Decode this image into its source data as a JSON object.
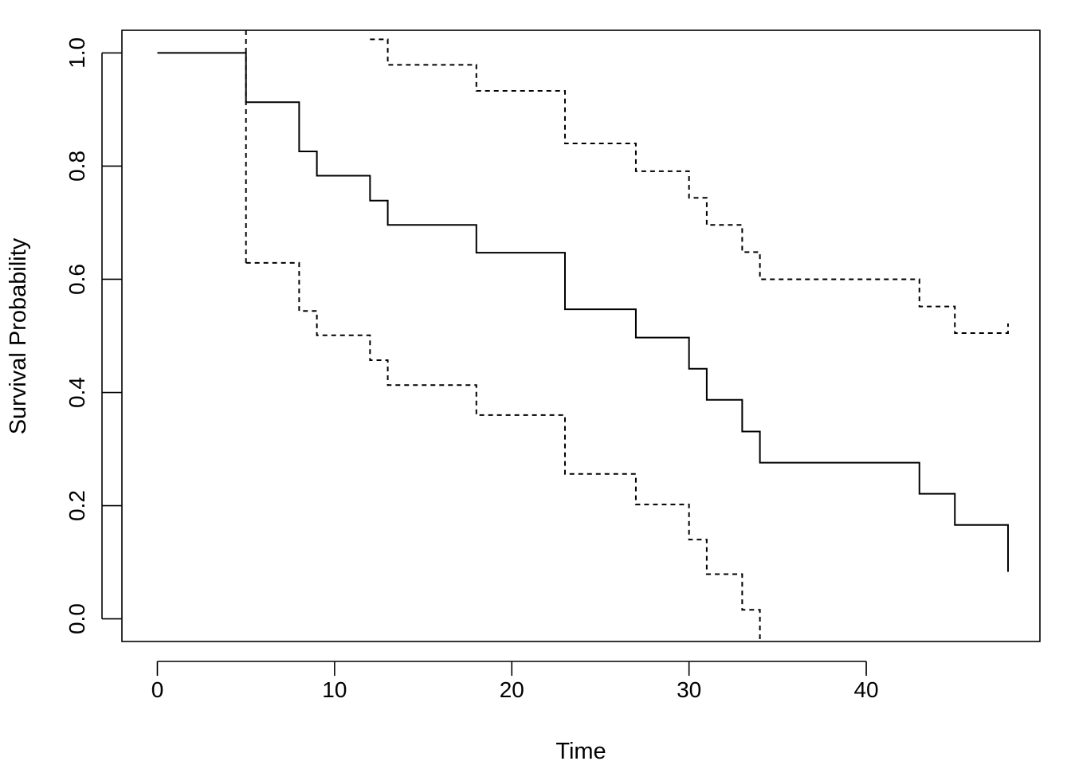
{
  "chart_data": {
    "type": "line",
    "title": "",
    "xlabel": "Time",
    "ylabel": "Survival Probability",
    "xlim": [
      -2,
      49.8
    ],
    "ylim": [
      -0.04,
      1.04
    ],
    "x_ticks": [
      0,
      10,
      20,
      30,
      40
    ],
    "x_tick_labels": [
      "0",
      "10",
      "20",
      "30",
      "40"
    ],
    "y_ticks": [
      0,
      0.2,
      0.4,
      0.6,
      0.8,
      1
    ],
    "y_tick_labels": [
      "0.0",
      "0.2",
      "0.4",
      "0.6",
      "0.8",
      "1.0"
    ],
    "grid": false,
    "legend": "none",
    "series": [
      {
        "style": "solid",
        "step": true,
        "x": [
          0,
          5,
          8,
          9,
          12,
          13,
          18,
          23,
          27,
          30,
          31,
          33,
          34,
          43,
          45,
          48
        ],
        "y": [
          1.0,
          0.913,
          0.826,
          0.783,
          0.739,
          0.696,
          0.647,
          0.547,
          0.497,
          0.442,
          0.387,
          0.331,
          0.276,
          0.221,
          0.166,
          0.083
        ]
      },
      {
        "style": "dashed",
        "step": true,
        "x": [
          5,
          8,
          9,
          12,
          13,
          18,
          23,
          27,
          30,
          31,
          33,
          34
        ],
        "y": [
          0.629,
          0.544,
          0.501,
          0.457,
          0.413,
          0.36,
          0.256,
          0.202,
          0.14,
          0.079,
          0.016,
          -0.04
        ]
      },
      {
        "style": "dashed",
        "step": true,
        "x": [
          12,
          13,
          18,
          23,
          27,
          30,
          31,
          33,
          34,
          43,
          45,
          48
        ],
        "y": [
          1.024,
          0.979,
          0.933,
          0.84,
          0.791,
          0.744,
          0.696,
          0.648,
          0.6,
          0.552,
          0.505,
          0.522
        ]
      }
    ]
  }
}
